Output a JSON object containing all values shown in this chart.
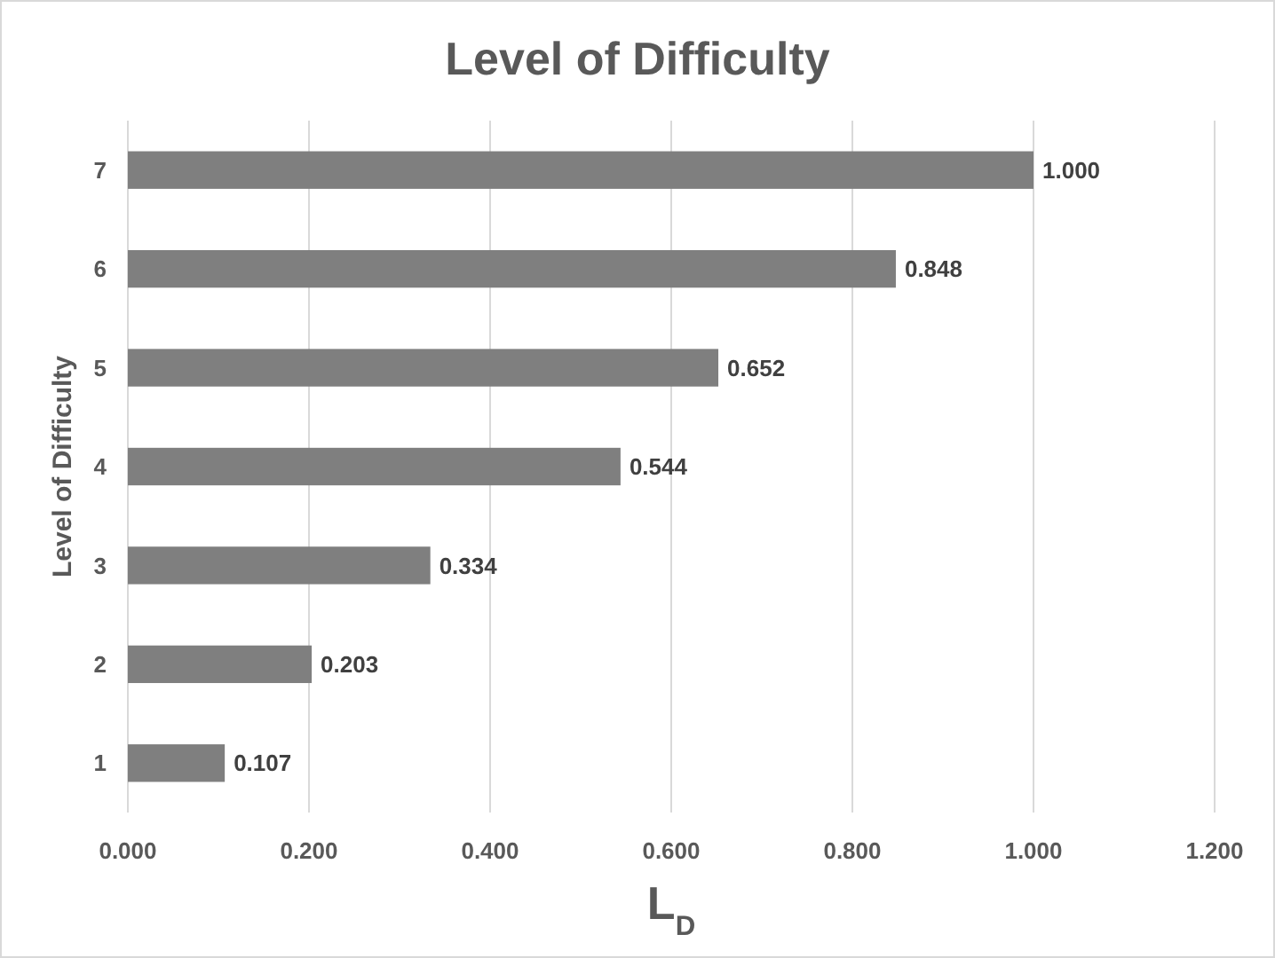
{
  "chart_data": {
    "type": "bar",
    "orientation": "horizontal",
    "title": "Level of Difficulty",
    "xlabel": "L$_{D}$",
    "ylabel": "Level of Difficulty",
    "categories": [
      "7",
      "6",
      "5",
      "4",
      "3",
      "2",
      "1"
    ],
    "values": [
      1.0,
      0.848,
      0.652,
      0.544,
      0.334,
      0.203,
      0.107
    ],
    "value_labels": [
      "1.000",
      "0.848",
      "0.652",
      "0.544",
      "0.334",
      "0.203",
      "0.107"
    ],
    "color": "#7f7f7f",
    "xlim": [
      0,
      1.2
    ],
    "xticks": [
      {
        "value": 0,
        "label": "0.000"
      },
      {
        "value": 0.2,
        "label": "0.200"
      },
      {
        "value": 0.4,
        "label": "0.400"
      },
      {
        "value": 0.6,
        "label": "0.600"
      },
      {
        "value": 0.8,
        "label": "0.800"
      },
      {
        "value": 1.0,
        "label": "1.000"
      },
      {
        "value": 1.2,
        "label": "1.200"
      }
    ],
    "grid": "x"
  }
}
